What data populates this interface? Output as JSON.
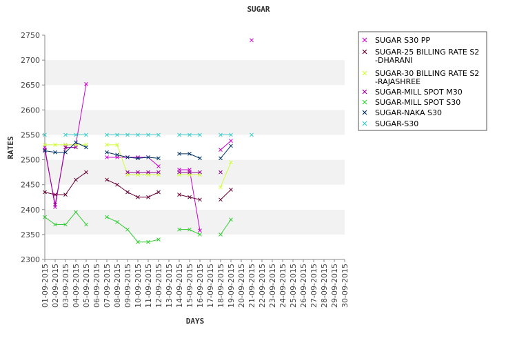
{
  "chart_data": {
    "type": "line",
    "title": "SUGAR",
    "xlabel": "DAYS",
    "ylabel": "RATES",
    "ylim": [
      2300,
      2750
    ],
    "yticks": [
      2300,
      2350,
      2400,
      2450,
      2500,
      2550,
      2600,
      2650,
      2700,
      2750
    ],
    "grid": "alternating horizontal bands",
    "legend_position": "right",
    "categories": [
      "01-09-2015",
      "02-09-2015",
      "03-09-2015",
      "04-09-2015",
      "05-09-2015",
      "06-09-2015",
      "07-09-2015",
      "08-09-2015",
      "09-09-2015",
      "10-09-2015",
      "11-09-2015",
      "12-09-2015",
      "13-09-2015",
      "14-09-2015",
      "15-09-2015",
      "16-09-2015",
      "17-09-2015",
      "18-09-2015",
      "19-09-2015",
      "20-09-2015",
      "21-09-2015",
      "22-09-2015",
      "23-09-2015",
      "24-09-2015",
      "25-09-2015",
      "26-09-2015",
      "27-09-2015",
      "28-09-2015",
      "29-09-2015",
      "30-09-2015"
    ],
    "series": [
      {
        "name": "SUGAR S30 PP",
        "color": "#cc00cc",
        "values": [
          2525,
          2405,
          2530,
          2530,
          2652,
          null,
          2505,
          2505,
          2505,
          2505,
          2505,
          2487,
          null,
          2480,
          2480,
          2358,
          null,
          2520,
          2538,
          null,
          2740,
          null,
          null,
          null,
          null,
          null,
          null,
          null,
          null,
          null
        ]
      },
      {
        "name": "SUGAR-25 BILLING RATE S2\n-DHARANI",
        "color": "#660033",
        "values": [
          2435,
          2430,
          2430,
          2460,
          2475,
          null,
          2460,
          2450,
          2435,
          2425,
          2425,
          2435,
          null,
          2430,
          2425,
          2420,
          null,
          2420,
          2440,
          null,
          null,
          null,
          null,
          null,
          null,
          null,
          null,
          null,
          null,
          null
        ]
      },
      {
        "name": "SUGAR-30 BILLING RATE S2\n-RAJASHREE",
        "color": "#ccff33",
        "values": [
          2530,
          2530,
          2530,
          2530,
          2530,
          null,
          2530,
          2530,
          2470,
          2470,
          2470,
          2470,
          null,
          2470,
          2470,
          2470,
          null,
          2445,
          2495,
          null,
          null,
          null,
          null,
          null,
          null,
          null,
          null,
          null,
          null,
          null
        ]
      },
      {
        "name": "SUGAR-MILL SPOT M30",
        "color": "#990099",
        "values": [
          2520,
          2410,
          2525,
          2525,
          null,
          null,
          null,
          null,
          2475,
          2475,
          2475,
          2475,
          null,
          2475,
          2475,
          2475,
          null,
          2475,
          null,
          null,
          null,
          null,
          null,
          null,
          null,
          null,
          null,
          null,
          null,
          null
        ]
      },
      {
        "name": "SUGAR-MILL SPOT S30",
        "color": "#33cc33",
        "values": [
          2385,
          2370,
          2370,
          2395,
          2370,
          null,
          2385,
          2375,
          2360,
          2335,
          2335,
          2340,
          null,
          2360,
          2360,
          2350,
          null,
          2350,
          2380,
          null,
          null,
          null,
          null,
          null,
          null,
          null,
          null,
          null,
          null,
          null
        ]
      },
      {
        "name": "SUGAR-NAKA S30",
        "color": "#003366",
        "values": [
          2518,
          2515,
          2515,
          2535,
          2525,
          null,
          2515,
          2510,
          2505,
          2503,
          2505,
          2503,
          null,
          2512,
          2512,
          2503,
          null,
          2503,
          2528,
          null,
          null,
          null,
          null,
          null,
          null,
          null,
          null,
          null,
          null,
          null
        ]
      },
      {
        "name": "SUGAR-S30",
        "color": "#33cccc",
        "values": [
          2550,
          null,
          2550,
          2550,
          2550,
          null,
          2550,
          2550,
          2550,
          2550,
          2550,
          2550,
          null,
          2550,
          2550,
          2550,
          null,
          2550,
          2550,
          null,
          2550,
          null,
          null,
          null,
          null,
          null,
          null,
          null,
          null,
          null
        ]
      }
    ]
  }
}
